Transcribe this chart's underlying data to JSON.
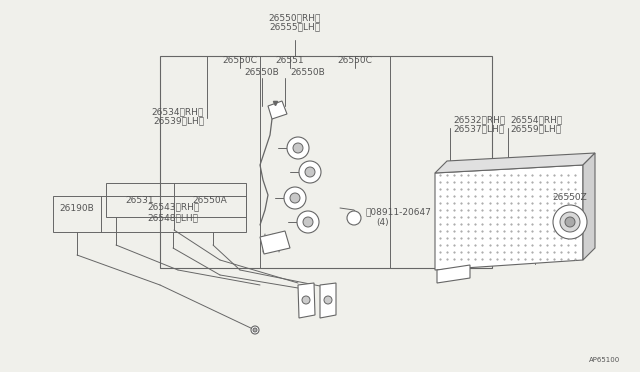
{
  "bg_color": "#f0f0eb",
  "line_color": "#666666",
  "text_color": "#555555",
  "font_size": 6.5,
  "labels": {
    "top_main": [
      "26550〈RH〉",
      "26555〈LH〉"
    ],
    "inner_row1": [
      "26550C",
      "26551",
      "26550C"
    ],
    "inner_row2": [
      "26550B",
      "26550B"
    ],
    "left_mid_upper": [
      "26534〈RH〉",
      "26539〈LH〉"
    ],
    "box_mid": [
      "26531",
      "26550A"
    ],
    "box_lower": [
      "26190B",
      "26543〈RH〉",
      "26548〈LH〉"
    ],
    "right_labels": [
      "26532〈RH〉",
      "26554〈RH〉",
      "26537〈LH〉",
      "26559〈LH〉"
    ],
    "bolt": [
      "ⓝ08911-20647",
      "(4)"
    ],
    "grommet": "26550Z",
    "code": "AP65100"
  }
}
